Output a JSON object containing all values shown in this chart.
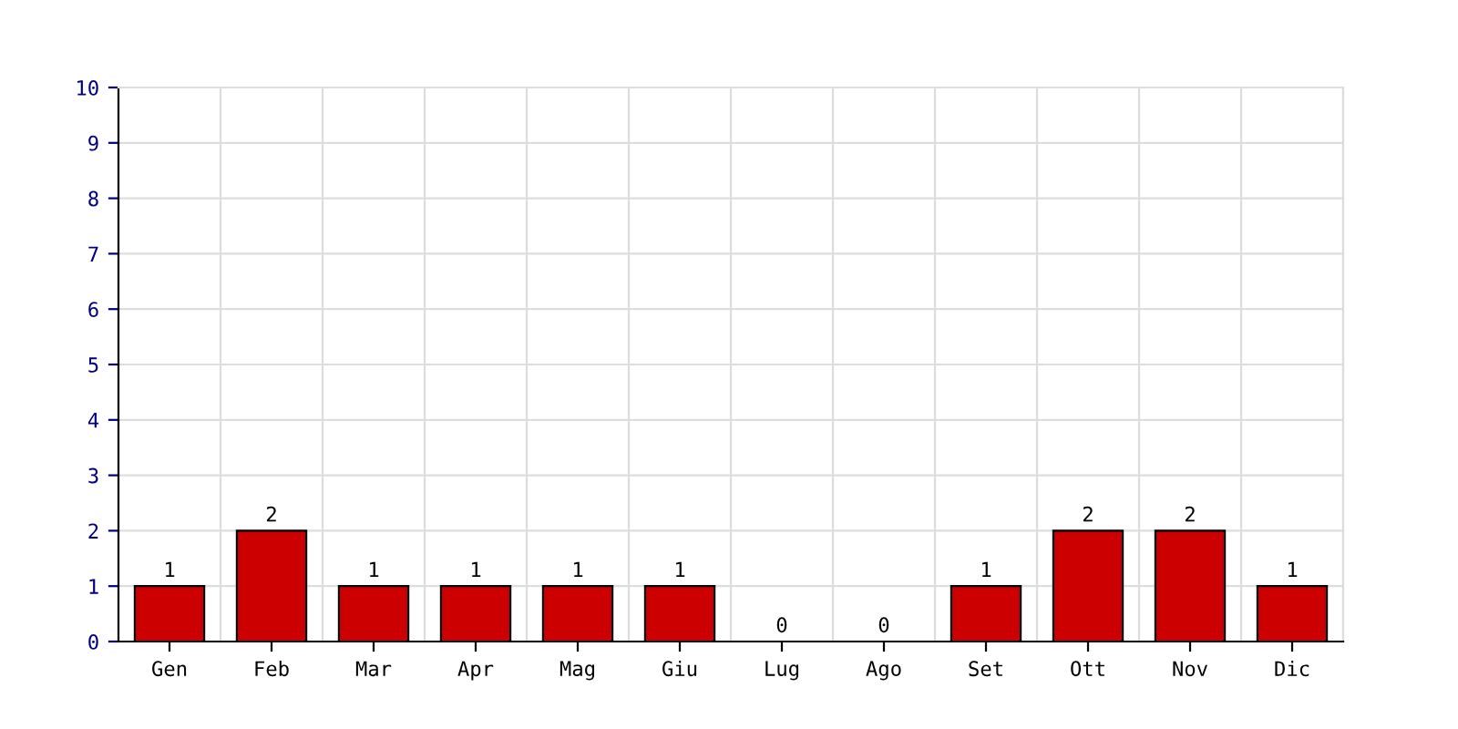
{
  "chart_data": {
    "type": "bar",
    "categories": [
      "Gen",
      "Feb",
      "Mar",
      "Apr",
      "Mag",
      "Giu",
      "Lug",
      "Ago",
      "Set",
      "Ott",
      "Nov",
      "Dic"
    ],
    "values": [
      1,
      2,
      1,
      1,
      1,
      1,
      0,
      0,
      1,
      2,
      2,
      1
    ],
    "color": "#cc0000",
    "ylim": [
      0,
      10
    ],
    "yticks": [
      0,
      1,
      2,
      3,
      4,
      5,
      6,
      7,
      8,
      9,
      10
    ],
    "grid": true,
    "data_labels": true
  }
}
